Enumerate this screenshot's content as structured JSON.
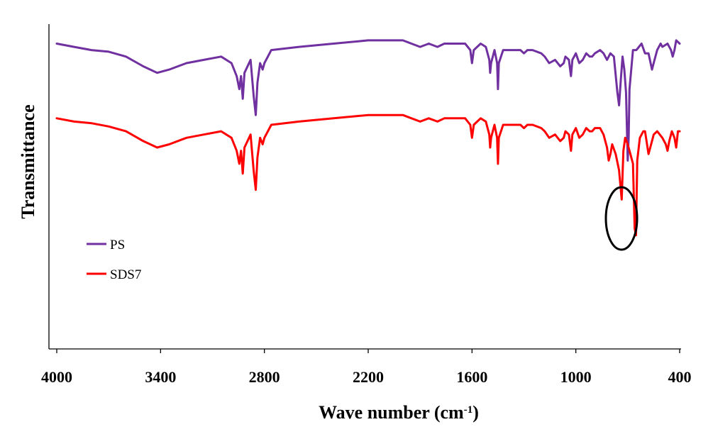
{
  "chart_data": {
    "type": "line",
    "title": "",
    "xlabel": "Wave number (cm",
    "xlabel_sup": "-1",
    "xlabel_suffix": ")",
    "ylabel": "Transmittance",
    "xlim": [
      4000,
      400
    ],
    "ylim": [
      0,
      100
    ],
    "x_reversed": true,
    "xticks": [
      "4000",
      "3400",
      "2800",
      "2200",
      "1600",
      "1000",
      "400"
    ],
    "grid": false,
    "legend_position": "left-center",
    "annotation": "ellipse-circle-around-SDS7-peak-near-820",
    "series": [
      {
        "name": "PS",
        "color": "#7030A0",
        "points": [
          [
            4000,
            94
          ],
          [
            3900,
            93
          ],
          [
            3800,
            92
          ],
          [
            3700,
            91.5
          ],
          [
            3600,
            90
          ],
          [
            3500,
            87
          ],
          [
            3420,
            85
          ],
          [
            3350,
            86
          ],
          [
            3250,
            88
          ],
          [
            3150,
            89
          ],
          [
            3050,
            90
          ],
          [
            2990,
            88
          ],
          [
            2960,
            84
          ],
          [
            2945,
            80
          ],
          [
            2935,
            84
          ],
          [
            2925,
            77
          ],
          [
            2915,
            85
          ],
          [
            2880,
            89
          ],
          [
            2862,
            78
          ],
          [
            2850,
            72
          ],
          [
            2840,
            82
          ],
          [
            2825,
            88
          ],
          [
            2810,
            86
          ],
          [
            2800,
            88
          ],
          [
            2760,
            92
          ],
          [
            2600,
            93
          ],
          [
            2400,
            94
          ],
          [
            2200,
            95
          ],
          [
            2000,
            95
          ],
          [
            1950,
            94
          ],
          [
            1900,
            93
          ],
          [
            1850,
            94
          ],
          [
            1800,
            93
          ],
          [
            1760,
            94
          ],
          [
            1700,
            94
          ],
          [
            1640,
            94
          ],
          [
            1610,
            92
          ],
          [
            1600,
            88
          ],
          [
            1590,
            92
          ],
          [
            1550,
            94
          ],
          [
            1520,
            93
          ],
          [
            1500,
            89
          ],
          [
            1495,
            85
          ],
          [
            1490,
            88
          ],
          [
            1470,
            92
          ],
          [
            1455,
            88
          ],
          [
            1450,
            80
          ],
          [
            1445,
            88
          ],
          [
            1420,
            92
          ],
          [
            1380,
            92
          ],
          [
            1320,
            92
          ],
          [
            1300,
            91
          ],
          [
            1280,
            92
          ],
          [
            1250,
            92
          ],
          [
            1200,
            91
          ],
          [
            1180,
            90
          ],
          [
            1154,
            88
          ],
          [
            1120,
            89
          ],
          [
            1090,
            87
          ],
          [
            1070,
            88
          ],
          [
            1060,
            90
          ],
          [
            1040,
            89
          ],
          [
            1028,
            84
          ],
          [
            1020,
            89
          ],
          [
            1000,
            91
          ],
          [
            980,
            88
          ],
          [
            960,
            89
          ],
          [
            940,
            91
          ],
          [
            920,
            90
          ],
          [
            906,
            90
          ],
          [
            890,
            91
          ],
          [
            860,
            92
          ],
          [
            840,
            91
          ],
          [
            820,
            89
          ],
          [
            810,
            90
          ],
          [
            800,
            91
          ],
          [
            780,
            90
          ],
          [
            760,
            79
          ],
          [
            750,
            75
          ],
          [
            740,
            83
          ],
          [
            730,
            90
          ],
          [
            720,
            86
          ],
          [
            710,
            79
          ],
          [
            700,
            58
          ],
          [
            695,
            65
          ],
          [
            690,
            80
          ],
          [
            670,
            92
          ],
          [
            650,
            92
          ],
          [
            620,
            94
          ],
          [
            600,
            91
          ],
          [
            580,
            91
          ],
          [
            560,
            86
          ],
          [
            545,
            89
          ],
          [
            530,
            92
          ],
          [
            510,
            94
          ],
          [
            500,
            93
          ],
          [
            470,
            94
          ],
          [
            450,
            92
          ],
          [
            440,
            90
          ],
          [
            430,
            92
          ],
          [
            420,
            95
          ],
          [
            400,
            94
          ]
        ]
      },
      {
        "name": "SDS7",
        "color": "#FF0000",
        "points": [
          [
            4000,
            71
          ],
          [
            3900,
            70
          ],
          [
            3800,
            69.5
          ],
          [
            3700,
            68.5
          ],
          [
            3600,
            67
          ],
          [
            3500,
            64
          ],
          [
            3420,
            62
          ],
          [
            3350,
            63
          ],
          [
            3250,
            65
          ],
          [
            3150,
            66
          ],
          [
            3050,
            67
          ],
          [
            2990,
            65
          ],
          [
            2960,
            61
          ],
          [
            2945,
            57
          ],
          [
            2935,
            61
          ],
          [
            2925,
            54
          ],
          [
            2915,
            62
          ],
          [
            2880,
            66
          ],
          [
            2862,
            55
          ],
          [
            2850,
            49
          ],
          [
            2840,
            59
          ],
          [
            2825,
            65
          ],
          [
            2810,
            63
          ],
          [
            2800,
            65
          ],
          [
            2760,
            69
          ],
          [
            2600,
            70
          ],
          [
            2400,
            71
          ],
          [
            2200,
            72
          ],
          [
            2000,
            72
          ],
          [
            1950,
            71
          ],
          [
            1900,
            70
          ],
          [
            1850,
            71
          ],
          [
            1800,
            70
          ],
          [
            1760,
            71
          ],
          [
            1700,
            71
          ],
          [
            1640,
            71
          ],
          [
            1610,
            69
          ],
          [
            1600,
            65
          ],
          [
            1590,
            69
          ],
          [
            1550,
            71
          ],
          [
            1520,
            70
          ],
          [
            1500,
            66
          ],
          [
            1495,
            62
          ],
          [
            1490,
            65
          ],
          [
            1470,
            69
          ],
          [
            1455,
            65
          ],
          [
            1450,
            57
          ],
          [
            1445,
            65
          ],
          [
            1420,
            69
          ],
          [
            1380,
            69
          ],
          [
            1320,
            69
          ],
          [
            1300,
            68
          ],
          [
            1280,
            69
          ],
          [
            1250,
            69
          ],
          [
            1200,
            68
          ],
          [
            1180,
            67
          ],
          [
            1154,
            65
          ],
          [
            1120,
            66
          ],
          [
            1090,
            64
          ],
          [
            1070,
            65
          ],
          [
            1060,
            67
          ],
          [
            1040,
            66
          ],
          [
            1028,
            61
          ],
          [
            1020,
            66
          ],
          [
            1000,
            68
          ],
          [
            980,
            65
          ],
          [
            960,
            66
          ],
          [
            940,
            68
          ],
          [
            920,
            67
          ],
          [
            906,
            67
          ],
          [
            890,
            68
          ],
          [
            860,
            68
          ],
          [
            840,
            66
          ],
          [
            820,
            62
          ],
          [
            810,
            58
          ],
          [
            800,
            60
          ],
          [
            790,
            63
          ],
          [
            770,
            60
          ],
          [
            750,
            55
          ],
          [
            735,
            46
          ],
          [
            725,
            61
          ],
          [
            715,
            65
          ],
          [
            700,
            63
          ],
          [
            690,
            61
          ],
          [
            670,
            57
          ],
          [
            660,
            37
          ],
          [
            652,
            35
          ],
          [
            645,
            58
          ],
          [
            630,
            65
          ],
          [
            610,
            67
          ],
          [
            600,
            67
          ],
          [
            580,
            60
          ],
          [
            565,
            63
          ],
          [
            550,
            66
          ],
          [
            530,
            67
          ],
          [
            500,
            65
          ],
          [
            480,
            63
          ],
          [
            470,
            61
          ],
          [
            460,
            64
          ],
          [
            445,
            67
          ],
          [
            430,
            65
          ],
          [
            420,
            62
          ],
          [
            410,
            67
          ],
          [
            400,
            67
          ]
        ]
      }
    ]
  }
}
